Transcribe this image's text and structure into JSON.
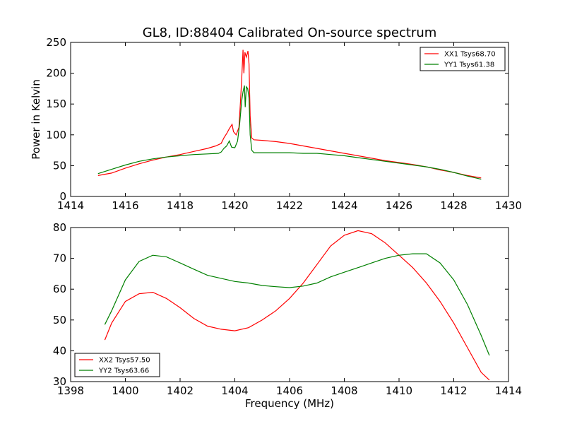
{
  "figure": {
    "title": "GL8, ID:88404 Calibrated On-source spectrum",
    "xlabel": "Frequency (MHz)"
  },
  "chart_data": [
    {
      "type": "line",
      "title": "GL8, ID:88404 Calibrated On-source spectrum",
      "xlabel": "",
      "ylabel": "Power in Kelvin",
      "xlim": [
        1414,
        1430
      ],
      "ylim": [
        0,
        250
      ],
      "xticks": [
        "1414",
        "1416",
        "1418",
        "1420",
        "1422",
        "1424",
        "1426",
        "1428",
        "1430"
      ],
      "yticks": [
        "0",
        "50",
        "100",
        "150",
        "200",
        "250"
      ],
      "grid": false,
      "legend_position": "top-right",
      "series": [
        {
          "name": "XX1 Tsys68.70",
          "color": "#ff0000",
          "points": [
            [
              1415,
              34
            ],
            [
              1415.5,
              38
            ],
            [
              1416,
              46
            ],
            [
              1416.5,
              53
            ],
            [
              1417,
              59
            ],
            [
              1417.5,
              64
            ],
            [
              1418,
              68
            ],
            [
              1418.5,
              73
            ],
            [
              1419,
              78
            ],
            [
              1419.3,
              82
            ],
            [
              1419.5,
              86
            ],
            [
              1419.6,
              95
            ],
            [
              1419.7,
              102
            ],
            [
              1419.8,
              110
            ],
            [
              1419.9,
              117
            ],
            [
              1419.95,
              105
            ],
            [
              1420.05,
              100
            ],
            [
              1420.15,
              112
            ],
            [
              1420.2,
              150
            ],
            [
              1420.25,
              190
            ],
            [
              1420.3,
              238
            ],
            [
              1420.33,
              200
            ],
            [
              1420.37,
              234
            ],
            [
              1420.42,
              226
            ],
            [
              1420.48,
              236
            ],
            [
              1420.52,
              215
            ],
            [
              1420.56,
              130
            ],
            [
              1420.62,
              95
            ],
            [
              1420.7,
              92
            ],
            [
              1421,
              91
            ],
            [
              1421.5,
              89
            ],
            [
              1422,
              86
            ],
            [
              1422.5,
              82
            ],
            [
              1423,
              78
            ],
            [
              1423.5,
              74
            ],
            [
              1424,
              70
            ],
            [
              1424.5,
              66
            ],
            [
              1425,
              62
            ],
            [
              1425.5,
              58
            ],
            [
              1426,
              55
            ],
            [
              1426.5,
              52
            ],
            [
              1427,
              48
            ],
            [
              1427.5,
              43
            ],
            [
              1428,
              39
            ],
            [
              1428.5,
              34
            ],
            [
              1429,
              30
            ]
          ]
        },
        {
          "name": "YY1 Tsys61.38",
          "color": "#008000",
          "points": [
            [
              1415,
              37
            ],
            [
              1415.5,
              44
            ],
            [
              1416,
              51
            ],
            [
              1416.5,
              57
            ],
            [
              1417,
              61
            ],
            [
              1417.5,
              64
            ],
            [
              1418,
              66
            ],
            [
              1418.5,
              68
            ],
            [
              1419,
              69
            ],
            [
              1419.4,
              70
            ],
            [
              1419.5,
              72
            ],
            [
              1419.6,
              78
            ],
            [
              1419.7,
              82
            ],
            [
              1419.8,
              90
            ],
            [
              1419.88,
              80
            ],
            [
              1420,
              79
            ],
            [
              1420.1,
              90
            ],
            [
              1420.18,
              120
            ],
            [
              1420.25,
              155
            ],
            [
              1420.3,
              170
            ],
            [
              1420.35,
              180
            ],
            [
              1420.38,
              145
            ],
            [
              1420.42,
              178
            ],
            [
              1420.47,
              175
            ],
            [
              1420.52,
              160
            ],
            [
              1420.56,
              100
            ],
            [
              1420.62,
              75
            ],
            [
              1420.7,
              71
            ],
            [
              1421,
              71
            ],
            [
              1421.5,
              71
            ],
            [
              1422,
              71
            ],
            [
              1422.5,
              70
            ],
            [
              1423,
              70
            ],
            [
              1423.5,
              68
            ],
            [
              1424,
              66
            ],
            [
              1424.5,
              63
            ],
            [
              1425,
              60
            ],
            [
              1425.5,
              57
            ],
            [
              1426,
              54
            ],
            [
              1426.5,
              51
            ],
            [
              1427,
              48
            ],
            [
              1427.5,
              44
            ],
            [
              1428,
              39
            ],
            [
              1428.5,
              33
            ],
            [
              1429,
              28
            ]
          ]
        }
      ]
    },
    {
      "type": "line",
      "title": "",
      "xlabel": "Frequency (MHz)",
      "ylabel": "",
      "xlim": [
        1398,
        1414
      ],
      "ylim": [
        30,
        80
      ],
      "xticks": [
        "1398",
        "1400",
        "1402",
        "1404",
        "1406",
        "1408",
        "1410",
        "1412",
        "1414"
      ],
      "yticks": [
        "30",
        "40",
        "50",
        "60",
        "70",
        "80"
      ],
      "grid": false,
      "legend_position": "bottom-left",
      "series": [
        {
          "name": "XX2 Tsys57.50",
          "color": "#ff0000",
          "points": [
            [
              1399.25,
              43.5
            ],
            [
              1399.5,
              49
            ],
            [
              1400,
              56
            ],
            [
              1400.5,
              58.5
            ],
            [
              1401,
              59
            ],
            [
              1401.5,
              57
            ],
            [
              1402,
              54
            ],
            [
              1402.5,
              50.5
            ],
            [
              1403,
              48
            ],
            [
              1403.5,
              47
            ],
            [
              1404,
              46.5
            ],
            [
              1404.5,
              47.5
            ],
            [
              1405,
              50
            ],
            [
              1405.5,
              53
            ],
            [
              1406,
              57
            ],
            [
              1406.5,
              62
            ],
            [
              1407,
              68
            ],
            [
              1407.5,
              74
            ],
            [
              1408,
              77.5
            ],
            [
              1408.5,
              79
            ],
            [
              1409,
              78
            ],
            [
              1409.5,
              75
            ],
            [
              1410,
              71
            ],
            [
              1410.5,
              67
            ],
            [
              1411,
              62
            ],
            [
              1411.5,
              56
            ],
            [
              1412,
              49
            ],
            [
              1412.5,
              41
            ],
            [
              1413,
              33
            ],
            [
              1413.3,
              30.5
            ]
          ]
        },
        {
          "name": "YY2 Tsys63.66",
          "color": "#008000",
          "points": [
            [
              1399.25,
              48.5
            ],
            [
              1399.5,
              53
            ],
            [
              1400,
              63
            ],
            [
              1400.5,
              69
            ],
            [
              1401,
              71
            ],
            [
              1401.5,
              70.5
            ],
            [
              1402,
              68.5
            ],
            [
              1402.5,
              66.5
            ],
            [
              1403,
              64.5
            ],
            [
              1403.5,
              63.5
            ],
            [
              1404,
              62.5
            ],
            [
              1404.5,
              62
            ],
            [
              1405,
              61.2
            ],
            [
              1405.5,
              60.8
            ],
            [
              1406,
              60.5
            ],
            [
              1406.5,
              61
            ],
            [
              1407,
              62
            ],
            [
              1407.5,
              64
            ],
            [
              1408,
              65.5
            ],
            [
              1408.5,
              67
            ],
            [
              1409,
              68.5
            ],
            [
              1409.5,
              70
            ],
            [
              1410,
              71
            ],
            [
              1410.5,
              71.5
            ],
            [
              1411,
              71.5
            ],
            [
              1411.5,
              68.5
            ],
            [
              1412,
              63
            ],
            [
              1412.5,
              55
            ],
            [
              1413,
              45
            ],
            [
              1413.3,
              38.5
            ]
          ]
        }
      ]
    }
  ]
}
